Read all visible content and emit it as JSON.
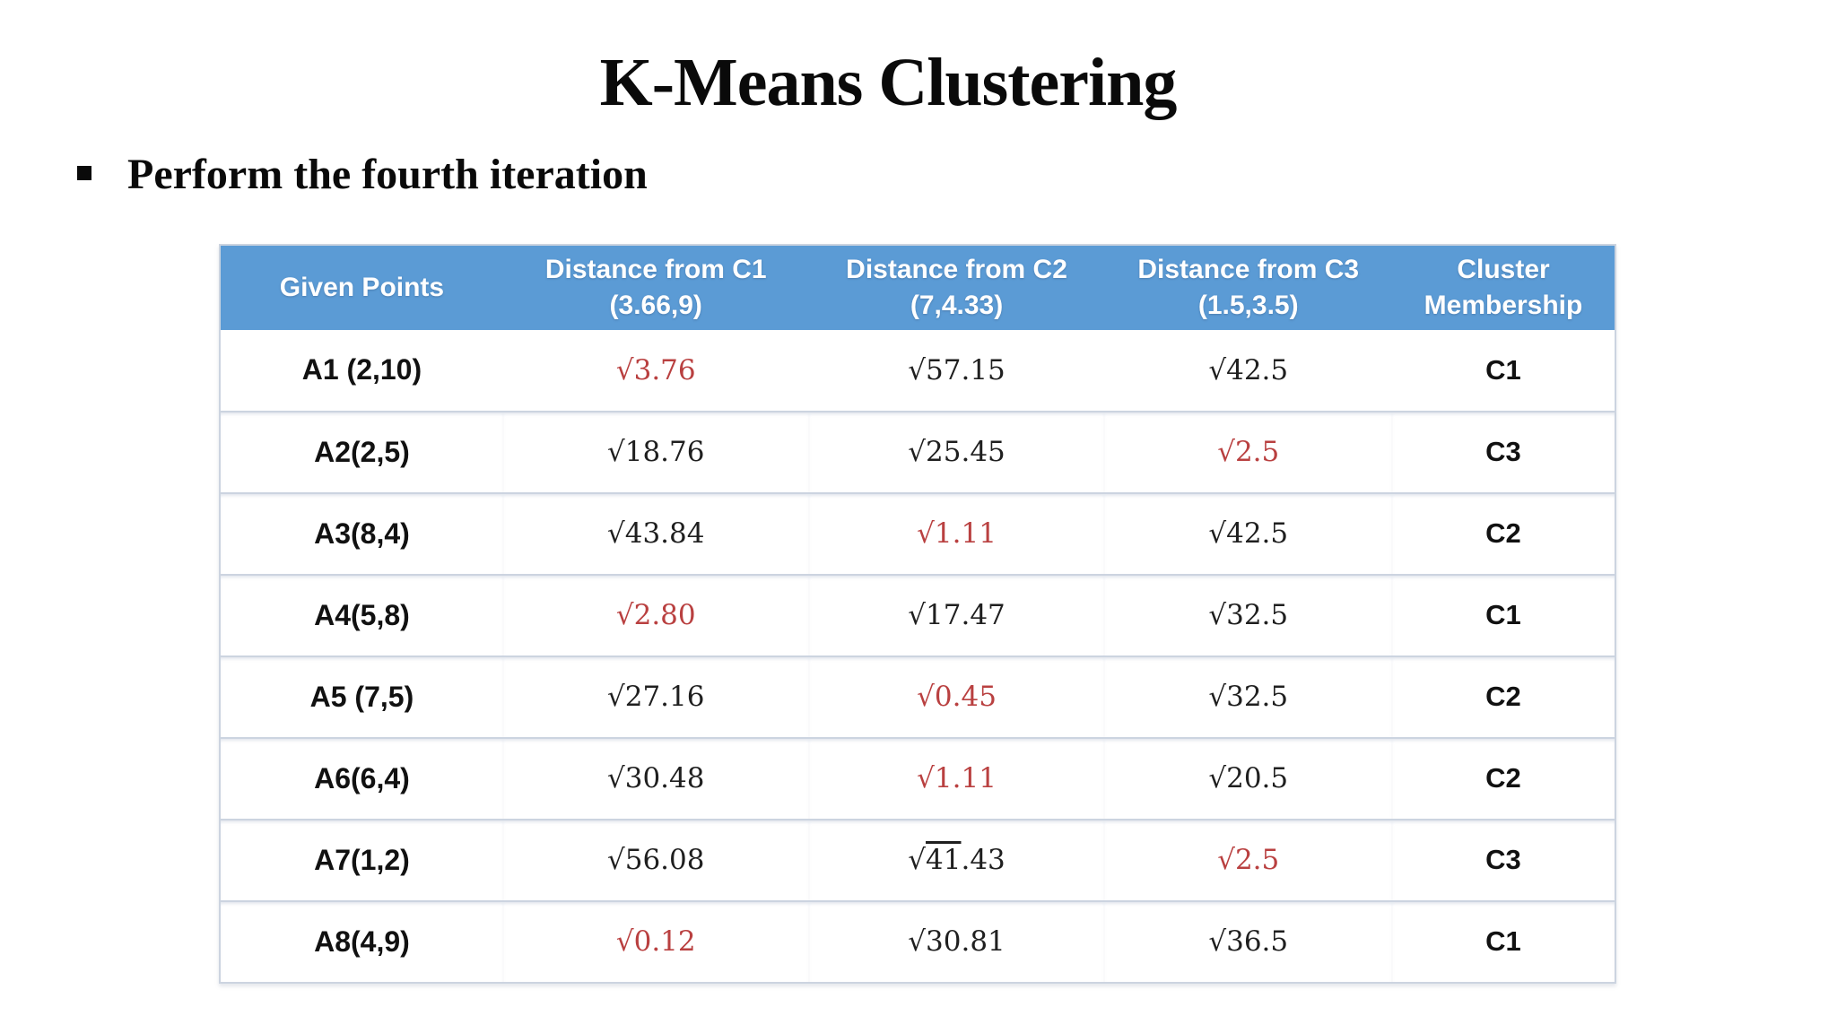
{
  "slide": {
    "title": "K-Means Clustering",
    "bullet": "Perform the fourth iteration"
  },
  "colors": {
    "header_bg": "#5B9BD5",
    "header_text": "#FFFFFF",
    "highlight_red": "#B94040",
    "body_text": "#111111",
    "row_border": "#CCD4E0"
  },
  "table": {
    "radical": "√",
    "headers": [
      {
        "line1": "Given Points",
        "line2": ""
      },
      {
        "line1": "Distance  from C1",
        "line2": "(3.66,9)"
      },
      {
        "line1": "Distance from C2",
        "line2": "(7,4.33)"
      },
      {
        "line1": "Distance from C3",
        "line2": "(1.5,3.5)"
      },
      {
        "line1": "Cluster",
        "line2": "Membership"
      }
    ],
    "rows": [
      {
        "point": "A1 (2,10)",
        "cells": [
          {
            "value": "3.76",
            "red": true
          },
          {
            "value": "57.15"
          },
          {
            "value": "42.5"
          }
        ],
        "cluster": "C1"
      },
      {
        "point": "A2(2,5)",
        "cells": [
          {
            "value": "18.76"
          },
          {
            "value": "25.45"
          },
          {
            "value": "2.5",
            "red": true
          }
        ],
        "cluster": "C3"
      },
      {
        "point": "A3(8,4)",
        "cells": [
          {
            "value": "43.84"
          },
          {
            "value": "1.11",
            "red": true
          },
          {
            "value": "42.5"
          }
        ],
        "cluster": "C2"
      },
      {
        "point": "A4(5,8)",
        "cells": [
          {
            "value": "2.80",
            "red": true
          },
          {
            "value": "17.47"
          },
          {
            "value": "32.5"
          }
        ],
        "cluster": "C1"
      },
      {
        "point": "A5 (7,5)",
        "cells": [
          {
            "value": "27.16"
          },
          {
            "value": "0.45",
            "red": true
          },
          {
            "value": "32.5"
          }
        ],
        "cluster": "C2"
      },
      {
        "point": "A6(6,4)",
        "cells": [
          {
            "value": "30.48"
          },
          {
            "value": "1.11",
            "red": true
          },
          {
            "value": "20.5"
          }
        ],
        "cluster": "C2"
      },
      {
        "point": "A7(1,2)",
        "cells": [
          {
            "value": "56.08"
          },
          {
            "value": "41.43",
            "bar": "41",
            "rest": ".43"
          },
          {
            "value": "2.5",
            "red": true
          }
        ],
        "cluster": "C3"
      },
      {
        "point": "A8(4,9)",
        "cells": [
          {
            "value": "0.12",
            "red": true
          },
          {
            "value": "30.81"
          },
          {
            "value": "36.5"
          }
        ],
        "cluster": "C1"
      }
    ]
  },
  "chart_data": {
    "type": "table",
    "title": "K-Means Clustering — Perform the fourth iteration",
    "columns": [
      "Given Points",
      "Distance from C1 (3.66,9)",
      "Distance from C2 (7,4.33)",
      "Distance from C3 (1.5,3.5)",
      "Cluster Membership"
    ],
    "rows": [
      [
        "A1 (2,10)",
        "√3.76",
        "√57.15",
        "√42.5",
        "C1"
      ],
      [
        "A2(2,5)",
        "√18.76",
        "√25.45",
        "√2.5",
        "C3"
      ],
      [
        "A3(8,4)",
        "√43.84",
        "√1.11",
        "√42.5",
        "C2"
      ],
      [
        "A4(5,8)",
        "√2.80",
        "√17.47",
        "√32.5",
        "C1"
      ],
      [
        "A5 (7,5)",
        "√27.16",
        "√0.45",
        "√32.5",
        "C2"
      ],
      [
        "A6(6,4)",
        "√30.48",
        "√1.11",
        "√20.5",
        "C2"
      ],
      [
        "A7(1,2)",
        "√56.08",
        "√41.43",
        "√2.5",
        "C3"
      ],
      [
        "A8(4,9)",
        "√0.12",
        "√30.81",
        "√36.5",
        "C1"
      ]
    ],
    "highlighted_min_cells": [
      [
        "A1",
        "C1"
      ],
      [
        "A2",
        "C3"
      ],
      [
        "A3",
        "C2"
      ],
      [
        "A4",
        "C1"
      ],
      [
        "A5",
        "C2"
      ],
      [
        "A6",
        "C2"
      ],
      [
        "A7",
        "C3"
      ],
      [
        "A8",
        "C1"
      ]
    ]
  }
}
